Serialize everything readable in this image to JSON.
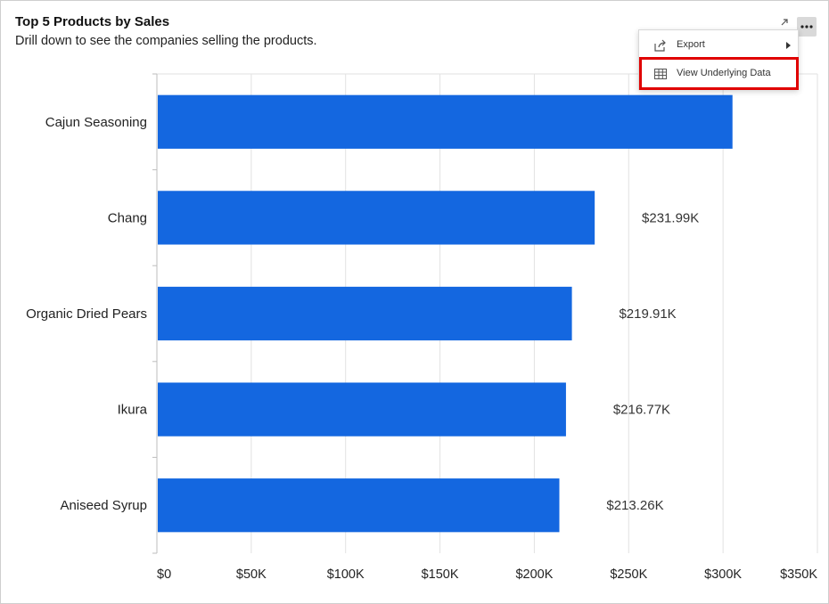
{
  "widget": {
    "title": "Top 5 Products by Sales",
    "subtitle": "Drill down to see the companies selling the products."
  },
  "toolbar": {
    "expand_icon": "expand-arrow-icon",
    "more_icon": "more-options-icon"
  },
  "menu": {
    "items": [
      {
        "label": "Export",
        "icon": "export-icon",
        "has_submenu": true
      },
      {
        "label": "View Underlying Data",
        "icon": "table-icon",
        "highlighted": true
      }
    ],
    "highlight_color": "#e00000"
  },
  "chart_data": {
    "type": "bar",
    "orientation": "horizontal",
    "categories": [
      "Cajun Seasoning",
      "Chang",
      "Organic Dried Pears",
      "Ikura",
      "Aniseed Syrup"
    ],
    "values": [
      305000,
      231990,
      219910,
      216770,
      213260
    ],
    "data_labels": [
      "",
      "$231.99K",
      "$219.91K",
      "$216.77K",
      "$213.26K"
    ],
    "x_ticks": [
      "$0",
      "$50K",
      "$100K",
      "$150K",
      "$200K",
      "$250K",
      "$300K",
      "$350K"
    ],
    "xlim": [
      0,
      350000
    ],
    "bar_color": "#1467e0",
    "grid": true
  }
}
